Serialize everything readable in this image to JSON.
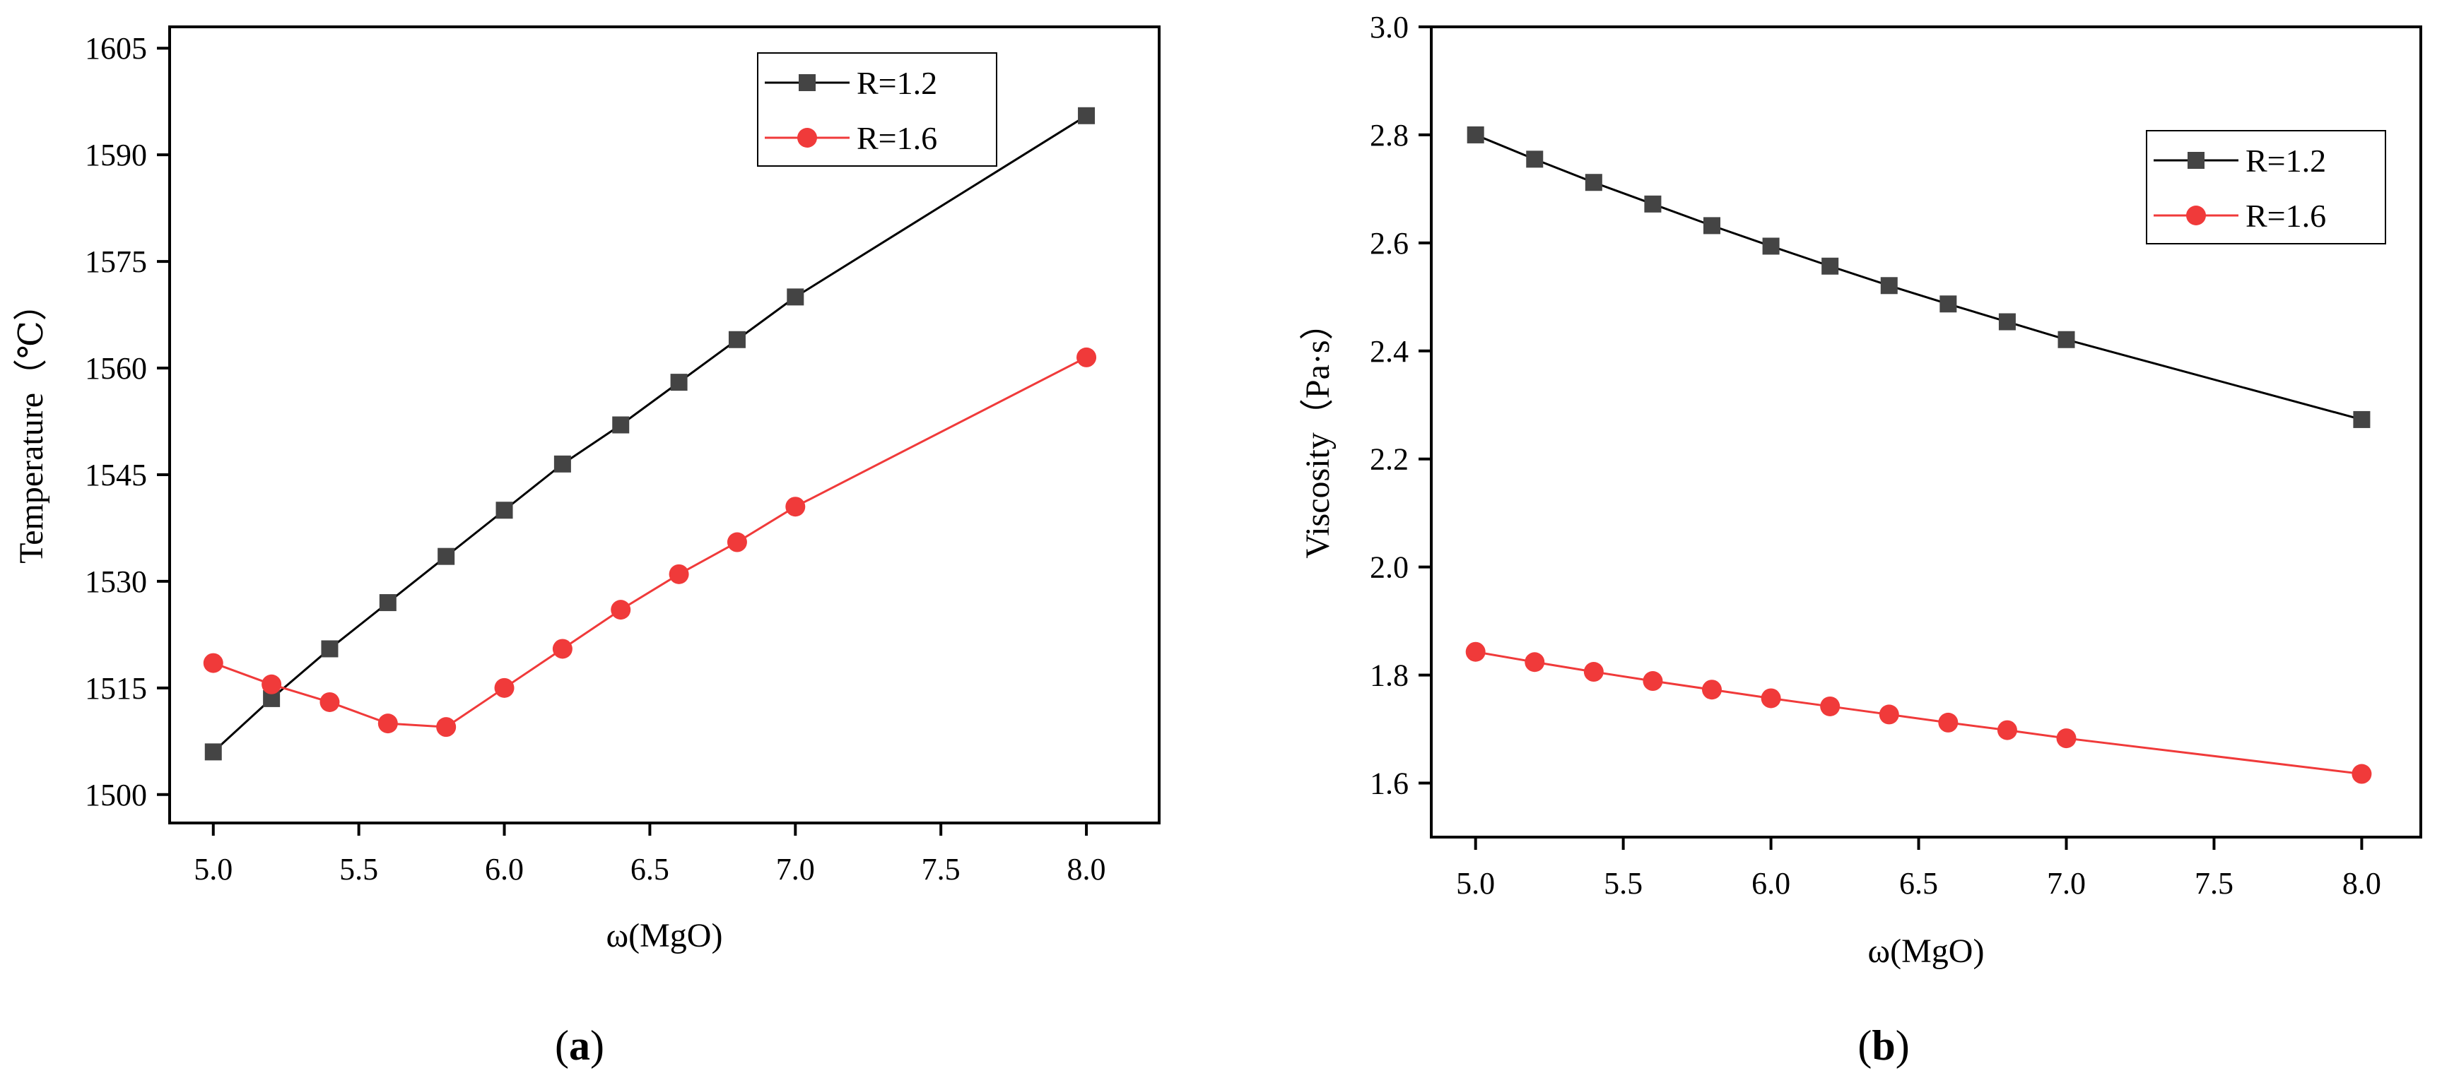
{
  "chart_data": [
    {
      "type": "line",
      "panel_label": "(a)",
      "panel_label_letter": "a",
      "xlabel": "ω(MgO)",
      "ylabel": "Temperature（℃）",
      "xlim": [
        4.85,
        8.25
      ],
      "ylim": [
        1496,
        1608
      ],
      "x_ticks": [
        5.0,
        5.5,
        6.0,
        6.5,
        7.0,
        7.5,
        8.0
      ],
      "x_tick_labels": [
        "5.0",
        "5.5",
        "6.0",
        "6.5",
        "7.0",
        "7.5",
        "8.0"
      ],
      "y_ticks": [
        1500,
        1515,
        1530,
        1545,
        1560,
        1575,
        1590,
        1605
      ],
      "y_tick_labels": [
        "1500",
        "1515",
        "1530",
        "1545",
        "1560",
        "1575",
        "1590",
        "1605"
      ],
      "legend_position": "top-right",
      "x": [
        5.0,
        5.2,
        5.4,
        5.6,
        5.8,
        6.0,
        6.2,
        6.4,
        6.6,
        6.8,
        7.0,
        8.0
      ],
      "series": [
        {
          "name": "R=1.2",
          "marker": "square",
          "color": "#444444",
          "line_color": "#000000",
          "values": [
            1506,
            1513.5,
            1520.5,
            1527,
            1533.5,
            1540,
            1546.5,
            1552,
            1558,
            1564,
            1570,
            1595.5
          ]
        },
        {
          "name": "R=1.6",
          "marker": "circle",
          "color": "#f03a3a",
          "line_color": "#f03a3a",
          "values": [
            1518.5,
            1515.5,
            1513,
            1510,
            1509.5,
            1515,
            1520.5,
            1526,
            1531,
            1535.5,
            1540.5,
            1561.5
          ]
        }
      ]
    },
    {
      "type": "line",
      "panel_label": "(b)",
      "panel_label_letter": "b",
      "xlabel": "ω(MgO)",
      "ylabel": "Viscosity（Pa·s）",
      "xlim": [
        4.85,
        8.2
      ],
      "ylim": [
        1.5,
        3.0
      ],
      "x_ticks": [
        5.0,
        5.5,
        6.0,
        6.5,
        7.0,
        7.5,
        8.0
      ],
      "x_tick_labels": [
        "5.0",
        "5.5",
        "6.0",
        "6.5",
        "7.0",
        "7.5",
        "8.0"
      ],
      "y_ticks": [
        1.6,
        1.8,
        2.0,
        2.2,
        2.4,
        2.6,
        2.8,
        3.0
      ],
      "y_tick_labels": [
        "1.6",
        "1.8",
        "2.0",
        "2.2",
        "2.4",
        "2.6",
        "2.8",
        "3.0"
      ],
      "legend_position": "top-right",
      "x": [
        5.0,
        5.2,
        5.4,
        5.6,
        5.8,
        6.0,
        6.2,
        6.4,
        6.6,
        6.8,
        7.0,
        8.0
      ],
      "series": [
        {
          "name": "R=1.2",
          "marker": "square",
          "color": "#444444",
          "line_color": "#000000",
          "values": [
            2.8,
            2.755,
            2.712,
            2.672,
            2.632,
            2.594,
            2.557,
            2.521,
            2.487,
            2.454,
            2.421,
            2.273
          ]
        },
        {
          "name": "R=1.6",
          "marker": "circle",
          "color": "#f03a3a",
          "line_color": "#f03a3a",
          "values": [
            1.843,
            1.824,
            1.806,
            1.789,
            1.773,
            1.757,
            1.742,
            1.727,
            1.712,
            1.698,
            1.683,
            1.617
          ]
        }
      ]
    }
  ]
}
